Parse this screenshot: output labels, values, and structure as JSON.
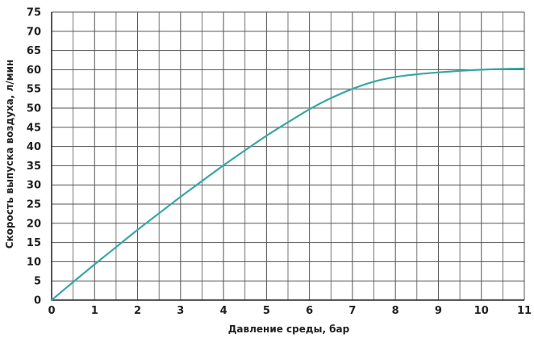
{
  "chart_data": {
    "type": "line",
    "title": "",
    "xlabel": "Давление среды, бар",
    "ylabel": "Скорость выпуска воздуха, л/мин",
    "xlim": [
      0,
      11
    ],
    "ylim": [
      0,
      75
    ],
    "xticks": [
      0,
      1,
      2,
      3,
      4,
      5,
      6,
      7,
      8,
      9,
      10,
      11
    ],
    "yticks": [
      0,
      5,
      10,
      15,
      20,
      25,
      30,
      35,
      40,
      45,
      50,
      55,
      60,
      65,
      70,
      75
    ],
    "grid": true,
    "colors": {
      "line": "#3aa6a6",
      "grid": "#555555",
      "axis": "#222222"
    },
    "series": [
      {
        "x": [
          0,
          0.5,
          1,
          1.5,
          2,
          2.5,
          3,
          3.5,
          4,
          4.5,
          5,
          5.5,
          6,
          6.5,
          7,
          7.5,
          8,
          8.5,
          9,
          9.5,
          10,
          10.5,
          11
        ],
        "y": [
          0,
          4.7,
          9.3,
          13.8,
          18.3,
          22.6,
          26.9,
          31.0,
          35.1,
          39.0,
          42.8,
          46.3,
          49.7,
          52.6,
          55.0,
          56.9,
          58.1,
          58.8,
          59.3,
          59.7,
          60.0,
          60.2,
          60.3
        ]
      }
    ]
  }
}
